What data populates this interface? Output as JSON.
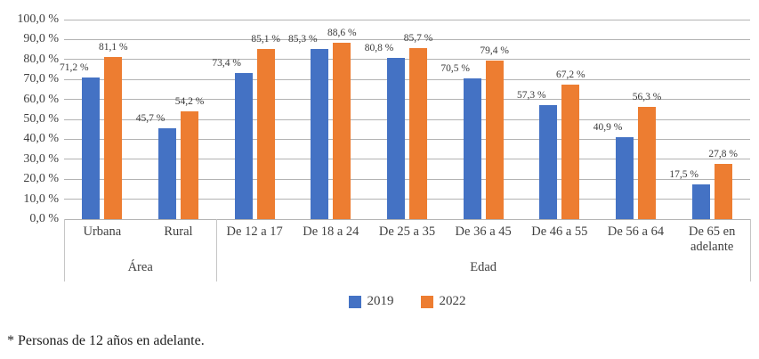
{
  "footnote": "* Personas de 12 años en adelante.",
  "chart_data": {
    "type": "bar",
    "title": "",
    "xlabel": "",
    "ylabel": "",
    "ylim": [
      0,
      100
    ],
    "y_tick_step": 10,
    "grid": true,
    "y_tick_labels": [
      "100,0 %",
      "90,0 %",
      "80,0 %",
      "70,0 %",
      "60,0 %",
      "50,0 %",
      "40,0 %",
      "30,0 %",
      "20,0 %",
      "10,0 %",
      "0,0 %"
    ],
    "categories": [
      "Urbana",
      "Rural",
      "De 12 a 17",
      "De 18 a 24",
      "De 25 a 35",
      "De 36 a 45",
      "De 46 a 55",
      "De 56 a 64",
      "De 65 en adelante"
    ],
    "groups": [
      {
        "label": "Área",
        "span": 2
      },
      {
        "label": "Edad",
        "span": 7
      }
    ],
    "series": [
      {
        "name": "2019",
        "color": "#4472C4",
        "values": [
          71.2,
          45.7,
          73.4,
          85.3,
          80.8,
          70.5,
          57.3,
          40.9,
          17.5
        ],
        "labels": [
          "71,2 %",
          "45,7 %",
          "73,4 %",
          "85,3 %",
          "80,8 %",
          "70,5 %",
          "57,3 %",
          "40,9 %",
          "17,5 %"
        ]
      },
      {
        "name": "2022",
        "color": "#ED7D31",
        "values": [
          81.1,
          54.2,
          85.1,
          88.6,
          85.7,
          79.4,
          67.2,
          56.3,
          27.8
        ],
        "labels": [
          "81,1 %",
          "54,2 %",
          "85,1 %",
          "88,6 %",
          "85,7 %",
          "79,4 %",
          "67,2 %",
          "56,3 %",
          "27,8 %"
        ]
      }
    ],
    "legend": {
      "position": "bottom",
      "entries": [
        "2019",
        "2022"
      ]
    }
  }
}
